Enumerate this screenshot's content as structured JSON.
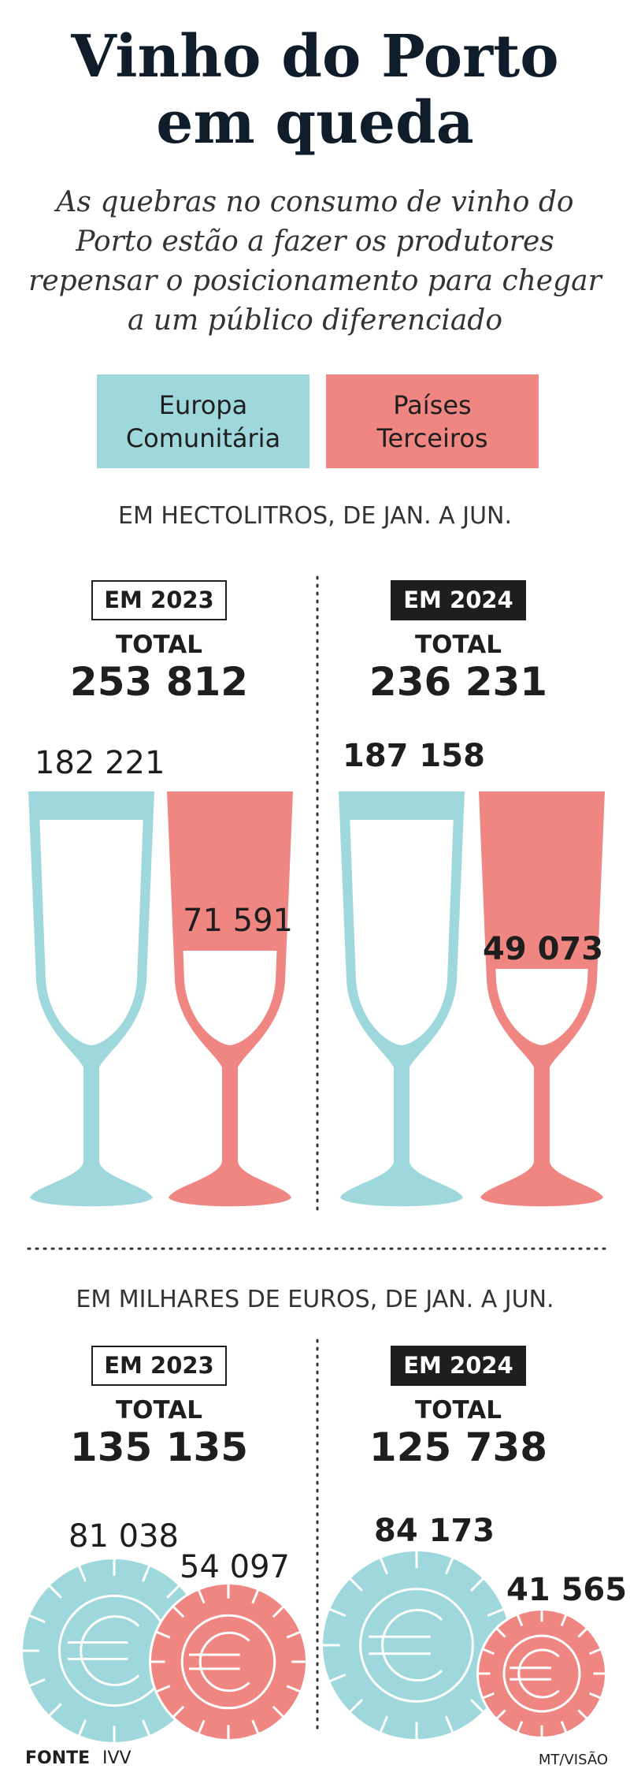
{
  "header": {
    "title": "Vinho do Porto em queda",
    "subtitle": "As quebras no consumo de vinho do Porto estão a fazer os produtores repensar o posicionamento para chegar a um público diferenciado"
  },
  "legend": [
    "Europa Comunitária",
    "Países Terceiros"
  ],
  "sections": [
    {
      "unit": "EM HECTOLITROS, DE JAN. A JUN.",
      "years": [
        {
          "year": "EM 2023",
          "total_label": "TOTAL",
          "total": "253 812",
          "eu": "182 221",
          "third": "71 591"
        },
        {
          "year": "EM 2024",
          "total_label": "TOTAL",
          "total": "236 231",
          "eu": "187 158",
          "third": "49 073"
        }
      ]
    },
    {
      "unit": "EM MILHARES DE EUROS, DE JAN. A JUN.",
      "years": [
        {
          "year": "EM 2023",
          "total_label": "TOTAL",
          "total": "135 135",
          "eu": "81 038",
          "third": "54 097"
        },
        {
          "year": "EM 2024",
          "total_label": "TOTAL",
          "total": "125 738",
          "eu": "84 173",
          "third": "41 565"
        }
      ]
    }
  ],
  "footer": {
    "source_label": "FONTE",
    "source": "IVV",
    "credit": "MT/VISÃO"
  }
}
